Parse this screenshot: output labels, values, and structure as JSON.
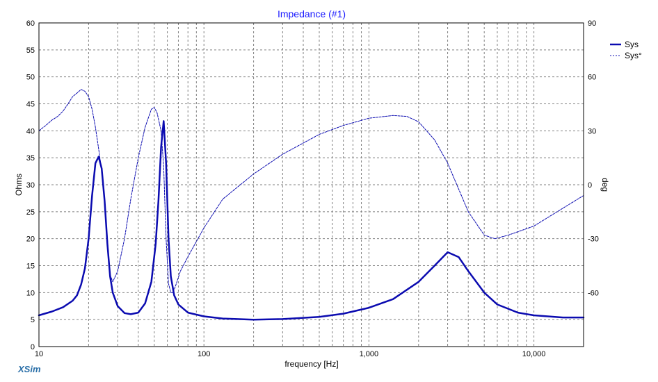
{
  "chart_data": {
    "type": "line",
    "title": "Impedance (#1)",
    "xlabel": "frequency [Hz]",
    "ylabel": "Ohms",
    "y2label": "deg",
    "x_scale": "log",
    "xlim": [
      10,
      20000
    ],
    "ylim": [
      0,
      60
    ],
    "y2lim": [
      -90,
      90
    ],
    "x_tick_labels": [
      "10",
      "100",
      "1,000",
      "10,000"
    ],
    "x_tick_values": [
      10,
      100,
      1000,
      10000
    ],
    "y_ticks": [
      0,
      5,
      10,
      15,
      20,
      25,
      30,
      35,
      40,
      45,
      50,
      55,
      60
    ],
    "y2_ticks": [
      -60,
      -30,
      0,
      30,
      60,
      90
    ],
    "grid": true,
    "legend_position": "top-right",
    "brand": "XSim",
    "series": [
      {
        "name": "Sys",
        "axis": "left",
        "style": "solid-thick",
        "color": "#0b0bb0",
        "x": [
          10,
          12,
          14,
          16,
          17,
          18,
          19,
          20,
          21,
          22,
          23,
          24,
          25,
          26,
          27,
          28,
          30,
          33,
          36,
          40,
          44,
          48,
          51,
          53,
          55,
          57,
          59,
          61,
          63,
          66,
          70,
          80,
          100,
          130,
          200,
          300,
          500,
          700,
          1000,
          1400,
          2000,
          2500,
          3000,
          3500,
          4000,
          5000,
          6000,
          8000,
          10000,
          15000,
          20000
        ],
        "y": [
          5.8,
          6.5,
          7.3,
          8.5,
          9.5,
          11.5,
          14.5,
          20,
          28,
          34,
          35.2,
          33,
          27,
          19,
          13,
          10,
          7.5,
          6.2,
          6.0,
          6.3,
          8,
          12,
          19,
          27,
          37,
          41.8,
          34,
          20,
          13,
          9.5,
          7.8,
          6.3,
          5.6,
          5.2,
          5.0,
          5.1,
          5.5,
          6.1,
          7.2,
          8.8,
          12,
          15,
          17.5,
          16.6,
          14,
          10,
          7.8,
          6.3,
          5.8,
          5.4,
          5.4
        ]
      },
      {
        "name": "Sys°",
        "axis": "right",
        "style": "dashed-thin",
        "color": "#0b0bb0",
        "x": [
          10,
          11,
          12,
          13,
          14,
          15,
          16,
          17,
          18,
          19,
          20,
          21,
          22,
          23,
          24,
          25,
          26,
          27,
          28,
          30,
          33,
          36,
          40,
          44,
          48,
          50,
          52,
          55,
          57,
          59,
          61,
          63,
          65,
          68,
          72,
          80,
          100,
          130,
          200,
          300,
          500,
          700,
          1000,
          1400,
          1700,
          2000,
          2500,
          3000,
          4000,
          5000,
          5800,
          7000,
          10000,
          15000,
          20000
        ],
        "y": [
          30,
          33,
          36,
          38,
          41,
          45,
          49,
          51,
          53,
          52,
          49,
          42,
          32,
          20,
          8,
          -8,
          -30,
          -50,
          -54,
          -48,
          -30,
          -8,
          15,
          32,
          42,
          43,
          40,
          30,
          10,
          -30,
          -55,
          -60,
          -60,
          -55,
          -48,
          -40,
          -24,
          -8,
          6,
          17,
          28,
          33,
          37,
          38.5,
          38,
          35,
          25,
          12,
          -15,
          -28,
          -30,
          -28,
          -23,
          -13,
          -6
        ]
      }
    ]
  }
}
